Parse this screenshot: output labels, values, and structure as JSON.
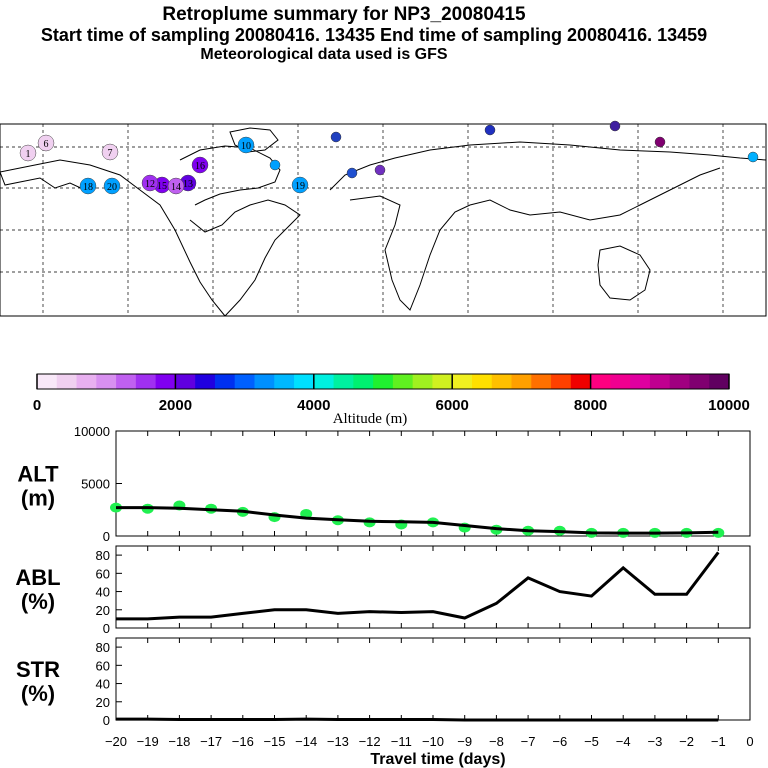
{
  "header": {
    "title": "Retroplume summary for NP3_20080415",
    "sampling": "Start time of sampling 20080416. 13435     End time of sampling 20080416. 13459",
    "met": "Meteorological data used is GFS"
  },
  "colorbar": {
    "ticks": [
      "0",
      "2000",
      "4000",
      "6000",
      "8000",
      "10000"
    ],
    "label": "Altitude (m)",
    "colors": [
      "#f8e8f8",
      "#f0d0f0",
      "#e8b0f0",
      "#d890f0",
      "#c060f0",
      "#a030f0",
      "#8000f0",
      "#6000e0",
      "#2000e0",
      "#0030f0",
      "#0060ff",
      "#0090ff",
      "#00b8ff",
      "#00e0ff",
      "#00f0e0",
      "#00f0a0",
      "#00f070",
      "#20f030",
      "#60f020",
      "#a0f020",
      "#d0f020",
      "#f0f020",
      "#ffe000",
      "#ffc000",
      "#ffa000",
      "#ff7000",
      "#ff4000",
      "#f00000",
      "#ff0080",
      "#f00090",
      "#e000a0",
      "#c00090",
      "#a00080",
      "#800070",
      "#600060"
    ]
  },
  "map": {
    "markers": [
      {
        "label": "1",
        "color": "#f0d0f0"
      },
      {
        "label": "6",
        "color": "#f0d0f0"
      },
      {
        "label": "7",
        "color": "#f0d0f0"
      },
      {
        "label": "20",
        "color": "#00a0ff"
      },
      {
        "label": "18",
        "color": "#00a0ff"
      },
      {
        "label": "15",
        "color": "#8000f0"
      },
      {
        "label": "13",
        "color": "#6000e0"
      },
      {
        "label": "10",
        "color": "#00a0ff"
      },
      {
        "label": "16",
        "color": "#8000f0"
      },
      {
        "label": "19",
        "color": "#00a0ff"
      },
      {
        "label": "14",
        "color": "#c060f0"
      },
      {
        "label": "12",
        "color": "#a030f0"
      }
    ]
  },
  "chart_data": [
    {
      "type": "line",
      "panel": "ALT",
      "ylabel_line1": "ALT",
      "ylabel_line2": "(m)",
      "ylim": [
        0,
        10000
      ],
      "yticks": [
        "0",
        "5000",
        "10000"
      ],
      "x": [
        -20,
        -19,
        -18,
        -17,
        -16,
        -15,
        -14,
        -13,
        -12,
        -11,
        -10,
        -9,
        -8,
        -7,
        -6,
        -5,
        -4,
        -3,
        -2,
        -1
      ],
      "values": [
        2700,
        2700,
        2650,
        2500,
        2350,
        2000,
        1700,
        1550,
        1400,
        1350,
        1300,
        1000,
        700,
        500,
        420,
        300,
        280,
        280,
        300,
        350
      ],
      "scatter": [
        {
          "x": -20,
          "y": 2700
        },
        {
          "x": -19,
          "y": 2600
        },
        {
          "x": -18,
          "y": 2900
        },
        {
          "x": -17,
          "y": 2600
        },
        {
          "x": -16,
          "y": 2300
        },
        {
          "x": -15,
          "y": 1800
        },
        {
          "x": -14,
          "y": 2100
        },
        {
          "x": -13,
          "y": 1500
        },
        {
          "x": -12,
          "y": 1300
        },
        {
          "x": -11,
          "y": 1100
        },
        {
          "x": -10,
          "y": 1300
        },
        {
          "x": -9,
          "y": 800
        },
        {
          "x": -8,
          "y": 600
        },
        {
          "x": -7,
          "y": 500
        },
        {
          "x": -6,
          "y": 500
        },
        {
          "x": -5,
          "y": 300
        },
        {
          "x": -4,
          "y": 300
        },
        {
          "x": -3,
          "y": 300
        },
        {
          "x": -2,
          "y": 300
        },
        {
          "x": -1,
          "y": 300
        }
      ]
    },
    {
      "type": "line",
      "panel": "ABL",
      "ylabel_line1": "ABL",
      "ylabel_line2": "(%)",
      "ylim": [
        0,
        90
      ],
      "yticks": [
        "0",
        "20",
        "40",
        "60",
        "80"
      ],
      "x": [
        -20,
        -19,
        -18,
        -17,
        -16,
        -15,
        -14,
        -13,
        -12,
        -11,
        -10,
        -9,
        -8,
        -7,
        -6,
        -5,
        -4,
        -3,
        -2,
        -1
      ],
      "values": [
        10,
        10,
        12,
        12,
        16,
        20,
        20,
        16,
        18,
        17,
        18,
        11,
        27,
        55,
        40,
        35,
        66,
        37,
        37,
        83
      ]
    },
    {
      "type": "line",
      "panel": "STR",
      "ylabel_line1": "STR",
      "ylabel_line2": "(%)",
      "ylim": [
        0,
        90
      ],
      "yticks": [
        "0",
        "20",
        "40",
        "60",
        "80"
      ],
      "x": [
        -20,
        -19,
        -18,
        -17,
        -16,
        -15,
        -14,
        -13,
        -12,
        -11,
        -10,
        -9,
        -8,
        -7,
        -6,
        -5,
        -4,
        -3,
        -2,
        -1
      ],
      "values": [
        1,
        1,
        0.5,
        0.5,
        0.5,
        0.5,
        1,
        0.5,
        0.5,
        0.5,
        0.5,
        0,
        0,
        0,
        0,
        0,
        0,
        0,
        0,
        0
      ]
    }
  ],
  "xaxis": {
    "label": "Travel time (days)",
    "ticks": [
      "−20",
      "−19",
      "−18",
      "−17",
      "−16",
      "−15",
      "−14",
      "−13",
      "−12",
      "−11",
      "−10",
      "−9",
      "−8",
      "−7",
      "−6",
      "−5",
      "−4",
      "−3",
      "−2",
      "−1",
      "0"
    ]
  }
}
